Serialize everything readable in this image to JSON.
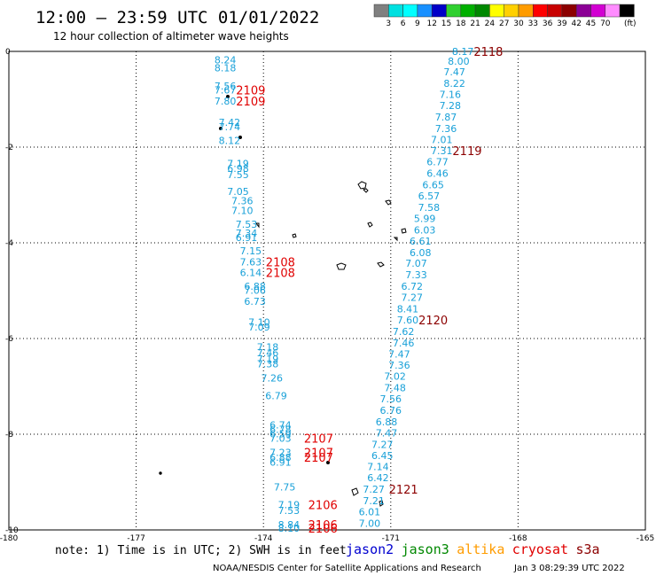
{
  "header": {
    "title": "12:00 — 23:59 UTC 01/01/2022",
    "subtitle": "12 hour collection of altimeter wave heights"
  },
  "legend": {
    "unit": "(ft)",
    "bins": [
      {
        "label": "",
        "color": "#808080"
      },
      {
        "label": "3",
        "color": "#00e0e0"
      },
      {
        "label": "6",
        "color": "#00ffff"
      },
      {
        "label": "9",
        "color": "#1890ff"
      },
      {
        "label": "12",
        "color": "#0000c8"
      },
      {
        "label": "15",
        "color": "#30d030"
      },
      {
        "label": "18",
        "color": "#00b000"
      },
      {
        "label": "21",
        "color": "#008800"
      },
      {
        "label": "24",
        "color": "#ffff00"
      },
      {
        "label": "27",
        "color": "#ffd000"
      },
      {
        "label": "30",
        "color": "#ff9c00"
      },
      {
        "label": "33",
        "color": "#ff0000"
      },
      {
        "label": "36",
        "color": "#c80000"
      },
      {
        "label": "39",
        "color": "#8c0000"
      },
      {
        "label": "42",
        "color": "#8c0096"
      },
      {
        "label": "45",
        "color": "#d200d2"
      },
      {
        "label": "70",
        "color": "#ff8cff"
      },
      {
        "label": "",
        "color": "#000000"
      }
    ]
  },
  "map": {
    "x_ticks": [
      "-180",
      "-177",
      "-174",
      "-171",
      "-168",
      "-165"
    ],
    "y_ticks": [
      "0",
      "-2",
      "-4",
      "-6",
      "-8",
      "-10"
    ],
    "lon_range": [
      -180,
      -165
    ],
    "lat_range": [
      -10,
      0
    ],
    "track_color": "#18a0d8",
    "labels": [
      {
        "text": "8.24",
        "lon": -174.9,
        "lat": -0.18
      },
      {
        "text": "8.18",
        "lon": -174.9,
        "lat": -0.34
      },
      {
        "text": "7.56",
        "lon": -174.9,
        "lat": -0.72
      },
      {
        "text": "7.67",
        "lon": -174.9,
        "lat": -0.81
      },
      {
        "text": "7.80",
        "lon": -174.9,
        "lat": -1.04
      },
      {
        "text": "7.42",
        "lon": -174.8,
        "lat": -1.48
      },
      {
        "text": "7.74",
        "lon": -174.8,
        "lat": -1.57
      },
      {
        "text": "8.12",
        "lon": -174.8,
        "lat": -1.86
      },
      {
        "text": "7.19",
        "lon": -174.6,
        "lat": -2.34
      },
      {
        "text": "6.98",
        "lon": -174.6,
        "lat": -2.44
      },
      {
        "text": "7.55",
        "lon": -174.6,
        "lat": -2.57
      },
      {
        "text": "7.05",
        "lon": -174.6,
        "lat": -2.93
      },
      {
        "text": "7.36",
        "lon": -174.5,
        "lat": -3.12
      },
      {
        "text": "7.10",
        "lon": -174.5,
        "lat": -3.32
      },
      {
        "text": "7.53",
        "lon": -174.4,
        "lat": -3.61
      },
      {
        "text": "7.34",
        "lon": -174.4,
        "lat": -3.8
      },
      {
        "text": "6.91",
        "lon": -174.4,
        "lat": -3.89
      },
      {
        "text": "7.15",
        "lon": -174.3,
        "lat": -4.17
      },
      {
        "text": "7.63",
        "lon": -174.3,
        "lat": -4.4
      },
      {
        "text": "6.14",
        "lon": -174.3,
        "lat": -4.62
      },
      {
        "text": "6.88",
        "lon": -174.2,
        "lat": -4.91
      },
      {
        "text": "7.06",
        "lon": -174.2,
        "lat": -4.99
      },
      {
        "text": "6.73",
        "lon": -174.2,
        "lat": -5.22
      },
      {
        "text": "7.10",
        "lon": -174.1,
        "lat": -5.66
      },
      {
        "text": "7.09",
        "lon": -174.1,
        "lat": -5.76
      },
      {
        "text": "7.18",
        "lon": -173.9,
        "lat": -6.18
      },
      {
        "text": "7.46",
        "lon": -173.9,
        "lat": -6.3
      },
      {
        "text": "7.19",
        "lon": -173.9,
        "lat": -6.43
      },
      {
        "text": "7.38",
        "lon": -173.9,
        "lat": -6.53
      },
      {
        "text": "7.26",
        "lon": -173.8,
        "lat": -6.82
      },
      {
        "text": "6.79",
        "lon": -173.7,
        "lat": -7.19
      },
      {
        "text": "6.74",
        "lon": -173.6,
        "lat": -7.81
      },
      {
        "text": "6.78",
        "lon": -173.6,
        "lat": -7.9
      },
      {
        "text": "6.59",
        "lon": -173.6,
        "lat": -7.99
      },
      {
        "text": "7.03",
        "lon": -173.6,
        "lat": -8.08
      },
      {
        "text": "7.23",
        "lon": -173.6,
        "lat": -8.38
      },
      {
        "text": "6.88",
        "lon": -173.6,
        "lat": -8.48
      },
      {
        "text": "6.91",
        "lon": -173.6,
        "lat": -8.58
      },
      {
        "text": "7.75",
        "lon": -173.5,
        "lat": -9.1
      },
      {
        "text": "7.19",
        "lon": -173.4,
        "lat": -9.47
      },
      {
        "text": "7.53",
        "lon": -173.4,
        "lat": -9.59
      },
      {
        "text": "8.84",
        "lon": -173.4,
        "lat": -9.89
      },
      {
        "text": "8.10",
        "lon": -173.4,
        "lat": -9.96
      },
      {
        "text": "8.17",
        "lon": -169.3,
        "lat": 0.0
      },
      {
        "text": "8.00",
        "lon": -169.4,
        "lat": -0.2
      },
      {
        "text": "7.47",
        "lon": -169.5,
        "lat": -0.43
      },
      {
        "text": "8.22",
        "lon": -169.5,
        "lat": -0.67
      },
      {
        "text": "7.16",
        "lon": -169.6,
        "lat": -0.9
      },
      {
        "text": "7.28",
        "lon": -169.6,
        "lat": -1.13
      },
      {
        "text": "7.87",
        "lon": -169.7,
        "lat": -1.37
      },
      {
        "text": "7.36",
        "lon": -169.7,
        "lat": -1.61
      },
      {
        "text": "7.01",
        "lon": -169.8,
        "lat": -1.84
      },
      {
        "text": "7.31",
        "lon": -169.8,
        "lat": -2.07
      },
      {
        "text": "6.77",
        "lon": -169.9,
        "lat": -2.31
      },
      {
        "text": "6.46",
        "lon": -169.9,
        "lat": -2.55
      },
      {
        "text": "6.65",
        "lon": -170.0,
        "lat": -2.79
      },
      {
        "text": "6.57",
        "lon": -170.1,
        "lat": -3.02
      },
      {
        "text": "7.58",
        "lon": -170.1,
        "lat": -3.26
      },
      {
        "text": "5.99",
        "lon": -170.2,
        "lat": -3.49
      },
      {
        "text": "6.03",
        "lon": -170.2,
        "lat": -3.73
      },
      {
        "text": "6.61",
        "lon": -170.3,
        "lat": -3.96
      },
      {
        "text": "6.08",
        "lon": -170.3,
        "lat": -4.2
      },
      {
        "text": "7.07",
        "lon": -170.4,
        "lat": -4.43
      },
      {
        "text": "7.33",
        "lon": -170.4,
        "lat": -4.67
      },
      {
        "text": "6.72",
        "lon": -170.5,
        "lat": -4.91
      },
      {
        "text": "7.27",
        "lon": -170.5,
        "lat": -5.14
      },
      {
        "text": "8.41",
        "lon": -170.6,
        "lat": -5.38
      },
      {
        "text": "7.60",
        "lon": -170.6,
        "lat": -5.61
      },
      {
        "text": "7.62",
        "lon": -170.7,
        "lat": -5.85
      },
      {
        "text": "7.46",
        "lon": -170.7,
        "lat": -6.09
      },
      {
        "text": "7.47",
        "lon": -170.8,
        "lat": -6.32
      },
      {
        "text": "7.36",
        "lon": -170.8,
        "lat": -6.56
      },
      {
        "text": "7.02",
        "lon": -170.9,
        "lat": -6.79
      },
      {
        "text": "7.48",
        "lon": -170.9,
        "lat": -7.03
      },
      {
        "text": "7.56",
        "lon": -171.0,
        "lat": -7.26
      },
      {
        "text": "6.76",
        "lon": -171.0,
        "lat": -7.5
      },
      {
        "text": "6.88",
        "lon": -171.1,
        "lat": -7.74
      },
      {
        "text": "7.47",
        "lon": -171.1,
        "lat": -7.97
      },
      {
        "text": "7.27",
        "lon": -171.2,
        "lat": -8.21
      },
      {
        "text": "6.45",
        "lon": -171.2,
        "lat": -8.44
      },
      {
        "text": "7.14",
        "lon": -171.3,
        "lat": -8.68
      },
      {
        "text": "6.42",
        "lon": -171.3,
        "lat": -8.91
      },
      {
        "text": "7.27",
        "lon": -171.4,
        "lat": -9.15
      },
      {
        "text": "7.21",
        "lon": -171.4,
        "lat": -9.39
      },
      {
        "text": "6.01",
        "lon": -171.5,
        "lat": -9.62
      },
      {
        "text": "7.00",
        "lon": -171.5,
        "lat": -9.86
      }
    ],
    "pass_labels": [
      {
        "text": "2109",
        "lon": -174.3,
        "lat": -0.81,
        "color": "#e00000"
      },
      {
        "text": "2109",
        "lon": -174.3,
        "lat": -1.04,
        "color": "#e00000"
      },
      {
        "text": "2108",
        "lon": -173.6,
        "lat": -4.4,
        "color": "#e00000"
      },
      {
        "text": "2108",
        "lon": -173.6,
        "lat": -4.62,
        "color": "#e00000"
      },
      {
        "text": "2107",
        "lon": -172.7,
        "lat": -8.08,
        "color": "#e00000"
      },
      {
        "text": "2107",
        "lon": -172.7,
        "lat": -8.38,
        "color": "#e00000"
      },
      {
        "text": "2107",
        "lon": -172.7,
        "lat": -8.48,
        "color": "#e00000"
      },
      {
        "text": "2106",
        "lon": -172.6,
        "lat": -9.47,
        "color": "#e00000"
      },
      {
        "text": "2106",
        "lon": -172.6,
        "lat": -9.89,
        "color": "#e00000"
      },
      {
        "text": "2106",
        "lon": -172.6,
        "lat": -9.96,
        "color": "#e00000"
      },
      {
        "text": "2118",
        "lon": -168.7,
        "lat": 0.0,
        "color": "#8c0000"
      },
      {
        "text": "2119",
        "lon": -169.2,
        "lat": -2.07,
        "color": "#8c0000"
      },
      {
        "text": "2120",
        "lon": -170.0,
        "lat": -5.61,
        "color": "#8c0000"
      },
      {
        "text": "2121",
        "lon": -170.7,
        "lat": -9.15,
        "color": "#8c0000"
      }
    ]
  },
  "footer": {
    "note": "note: 1) Time is in UTC; 2) SWH is in feet",
    "satellites": [
      {
        "name": "jason2",
        "color": "#0000d0"
      },
      {
        "name": "jason3",
        "color": "#008800"
      },
      {
        "name": "altika",
        "color": "#ff9c00"
      },
      {
        "name": "cryosat",
        "color": "#e00000"
      },
      {
        "name": "s3a",
        "color": "#8c0000"
      }
    ],
    "credit": "NOAA/NESDIS Center for Satellite Applications and Research",
    "timestamp": "Jan  3 08:29:39 UTC 2022"
  }
}
